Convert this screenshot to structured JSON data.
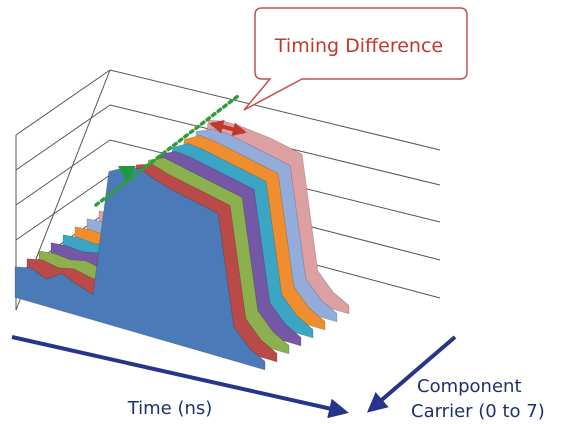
{
  "callout": {
    "text": "Timing Difference"
  },
  "axes": {
    "time_label": "Time (ns)",
    "carrier_label_line1": "Component",
    "carrier_label_line2": "Carrier (0 to 7)"
  },
  "colors": {
    "axis_arrow": "#26348c",
    "callout_border": "#c0504d",
    "callout_text": "#c0392b",
    "timing_arrow": "#c0392b",
    "dotted_line": "#2e9e3a",
    "marker": "#1f9a3a",
    "wall_lines": "#555555"
  },
  "chart_data": {
    "type": "area",
    "view": "3d-stacked-depth",
    "title": "",
    "xlabel": "Time (ns)",
    "zlabel": "Component Carrier (0 to 7)",
    "gridlines": true,
    "annotation": "Timing Difference",
    "x": [
      0,
      1,
      2,
      3,
      4,
      5,
      6,
      7,
      8,
      9,
      10,
      11,
      12,
      13,
      14,
      15,
      16
    ],
    "series": [
      {
        "carrier": 0,
        "color": "#4a7ab7",
        "values": [
          0.18,
          0.2,
          0.16,
          0.22,
          0.18,
          0.15,
          0.9,
          0.95,
          0.97,
          0.93,
          0.9,
          0.88,
          0.86,
          0.84,
          0.2,
          0.1,
          0.05
        ]
      },
      {
        "carrier": 1,
        "color": "#b94a48",
        "values": [
          0.18,
          0.2,
          0.18,
          0.2,
          0.18,
          0.17,
          0.2,
          0.92,
          0.95,
          0.92,
          0.9,
          0.88,
          0.86,
          0.84,
          0.2,
          0.1,
          0.05
        ]
      },
      {
        "carrier": 2,
        "color": "#8db04e",
        "values": [
          0.18,
          0.19,
          0.18,
          0.2,
          0.18,
          0.17,
          0.2,
          0.9,
          0.94,
          0.92,
          0.9,
          0.88,
          0.86,
          0.84,
          0.2,
          0.1,
          0.05
        ]
      },
      {
        "carrier": 3,
        "color": "#7458a6",
        "values": [
          0.18,
          0.19,
          0.18,
          0.2,
          0.18,
          0.17,
          0.2,
          0.89,
          0.93,
          0.92,
          0.9,
          0.88,
          0.86,
          0.84,
          0.2,
          0.1,
          0.05
        ]
      },
      {
        "carrier": 4,
        "color": "#3aa6c4",
        "values": [
          0.18,
          0.19,
          0.18,
          0.2,
          0.18,
          0.17,
          0.2,
          0.88,
          0.93,
          0.92,
          0.9,
          0.88,
          0.86,
          0.84,
          0.2,
          0.1,
          0.05
        ]
      },
      {
        "carrier": 5,
        "color": "#ef8d2f",
        "values": [
          0.18,
          0.19,
          0.18,
          0.2,
          0.18,
          0.17,
          0.2,
          0.88,
          0.93,
          0.92,
          0.9,
          0.88,
          0.86,
          0.84,
          0.2,
          0.1,
          0.05
        ]
      },
      {
        "carrier": 6,
        "color": "#93acd9",
        "values": [
          0.18,
          0.19,
          0.18,
          0.2,
          0.18,
          0.17,
          0.2,
          0.88,
          0.92,
          0.92,
          0.9,
          0.88,
          0.86,
          0.84,
          0.2,
          0.1,
          0.05
        ]
      },
      {
        "carrier": 7,
        "color": "#dc9fa2",
        "values": [
          0.18,
          0.19,
          0.18,
          0.2,
          0.18,
          0.17,
          0.2,
          0.9,
          0.92,
          0.92,
          0.91,
          0.9,
          0.88,
          0.86,
          0.2,
          0.1,
          0.05
        ]
      }
    ]
  }
}
